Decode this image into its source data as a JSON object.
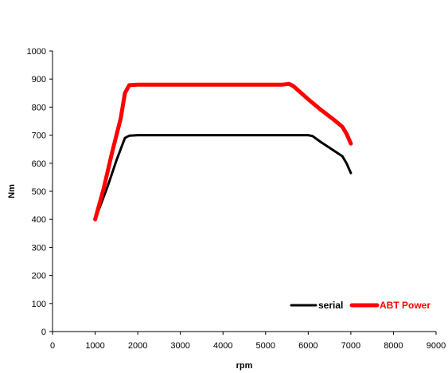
{
  "chart_data": {
    "type": "line",
    "title": "",
    "xlabel": "rpm",
    "ylabel": "Nm",
    "xlim": [
      0,
      9000
    ],
    "ylim": [
      0,
      1000
    ],
    "x_ticks": [
      0,
      1000,
      2000,
      3000,
      4000,
      5000,
      6000,
      7000,
      8000,
      9000
    ],
    "y_ticks": [
      0,
      100,
      200,
      300,
      400,
      500,
      600,
      700,
      800,
      900,
      1000
    ],
    "x_tick_labels": [
      "0",
      "1000",
      "2000",
      "3000",
      "4000",
      "5000",
      "6000",
      "7000",
      "8000",
      "9000"
    ],
    "y_tick_labels": [
      "0",
      "100",
      "200",
      "300",
      "400",
      "500",
      "600",
      "700",
      "800",
      "900",
      "1000"
    ],
    "grid": false,
    "legend_position": "bottom-right",
    "series": [
      {
        "name": "serial",
        "color": "#000000",
        "points": [
          [
            1000,
            400
          ],
          [
            1300,
            520
          ],
          [
            1500,
            610
          ],
          [
            1700,
            690
          ],
          [
            1800,
            698
          ],
          [
            2000,
            700
          ],
          [
            3000,
            700
          ],
          [
            4000,
            700
          ],
          [
            5000,
            700
          ],
          [
            6000,
            700
          ],
          [
            6100,
            697
          ],
          [
            6300,
            675
          ],
          [
            6500,
            655
          ],
          [
            6800,
            625
          ],
          [
            6900,
            600
          ],
          [
            7000,
            565
          ]
        ]
      },
      {
        "name": "ABT Power",
        "color": "#ff0000",
        "points": [
          [
            1000,
            400
          ],
          [
            1200,
            510
          ],
          [
            1400,
            640
          ],
          [
            1600,
            760
          ],
          [
            1700,
            850
          ],
          [
            1800,
            878
          ],
          [
            2000,
            880
          ],
          [
            3000,
            880
          ],
          [
            4000,
            880
          ],
          [
            5000,
            880
          ],
          [
            5400,
            880
          ],
          [
            5550,
            883
          ],
          [
            5650,
            875
          ],
          [
            5800,
            855
          ],
          [
            6000,
            828
          ],
          [
            6300,
            790
          ],
          [
            6600,
            755
          ],
          [
            6800,
            730
          ],
          [
            6900,
            705
          ],
          [
            7000,
            670
          ]
        ]
      }
    ]
  }
}
